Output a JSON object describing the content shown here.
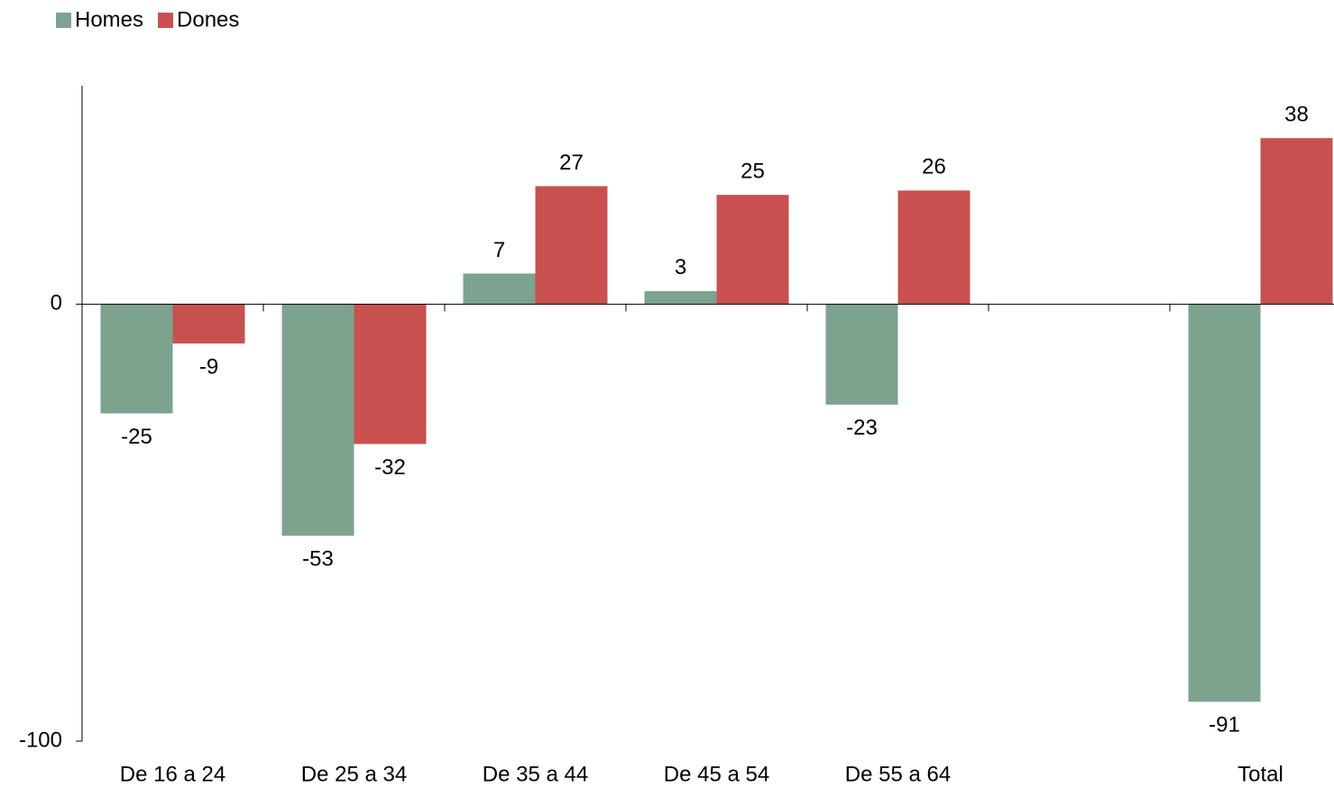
{
  "chart_data": {
    "type": "bar",
    "categories": [
      "De 16 a 24",
      "De 25 a 34",
      "De 35 a 44",
      "De 45 a 54",
      "De 55 a 64",
      null,
      "Total"
    ],
    "series": [
      {
        "name": "Homes",
        "color": "#7da38f",
        "values": [
          -25,
          -53,
          7,
          3,
          -23,
          null,
          -91
        ]
      },
      {
        "name": "Dones",
        "color": "#c85150",
        "values": [
          -9,
          -32,
          27,
          25,
          26,
          null,
          38
        ]
      }
    ],
    "ylim": [
      -100,
      50
    ],
    "yticks": [
      -100,
      0
    ],
    "legend": "top-left"
  }
}
